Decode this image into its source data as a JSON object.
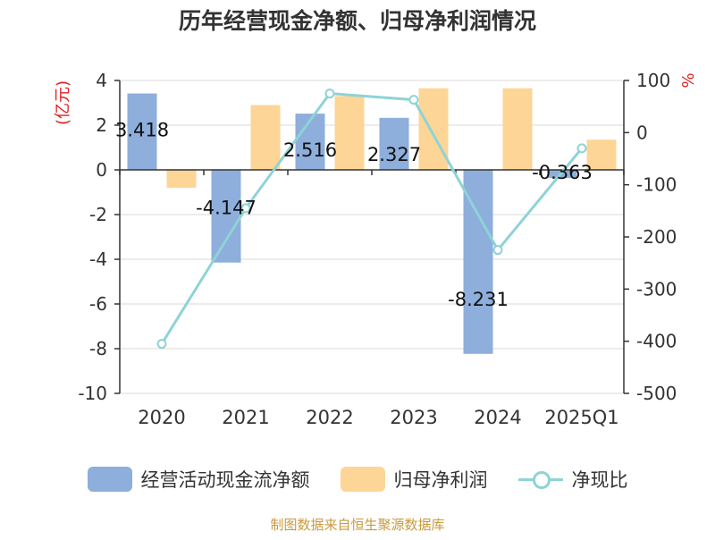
{
  "chart_data": {
    "type": "bar",
    "title": "历年经营现金净额、归母净利润情况",
    "categories": [
      "2020",
      "2021",
      "2022",
      "2023",
      "2024",
      "2025Q1"
    ],
    "y_left": {
      "label": "(亿元)",
      "min": -10,
      "max": 4,
      "ticks": [
        4,
        2,
        0,
        -2,
        -4,
        -6,
        -8,
        -10
      ]
    },
    "y_right": {
      "label": "%",
      "min": -500,
      "max": 100,
      "ticks": [
        100,
        0,
        -100,
        -200,
        -300,
        -400,
        -500
      ]
    },
    "series": [
      {
        "name": "经营活动现金流净额",
        "type": "bar",
        "axis": "left",
        "color": "#8eaedb",
        "values": [
          3.418,
          -4.147,
          2.516,
          2.327,
          -8.231,
          -0.363
        ],
        "labels": [
          "3.418",
          "-4.147",
          "2.516",
          "2.327",
          "-8.231",
          "-0.363"
        ]
      },
      {
        "name": "归母净利润",
        "type": "bar",
        "axis": "left",
        "color": "#fdd596",
        "values": [
          -0.8,
          2.9,
          3.3,
          3.65,
          3.65,
          1.35
        ]
      },
      {
        "name": "净现比",
        "type": "line",
        "axis": "right",
        "color": "#8ed3d6",
        "values": [
          -405,
          -145,
          75,
          63,
          -225,
          -30
        ]
      }
    ],
    "grid": true,
    "legend_position": "bottom"
  },
  "footer": {
    "source": "制图数据来自恒生聚源数据库"
  }
}
